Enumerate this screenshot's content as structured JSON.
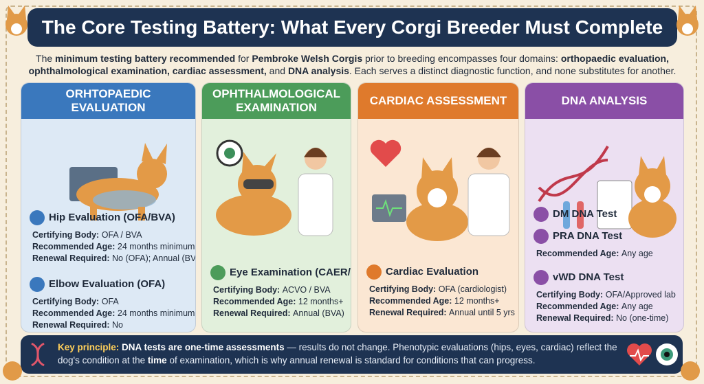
{
  "title": "The Core Testing Battery: What Every Corgi Breeder Must Complete",
  "intro": [
    "The ",
    "minimum testing battery recommended",
    " for ",
    "Pembroke Welsh Corgis",
    " prior to breeding encompasses four domains: ",
    "orthopaedic evaluation, ophthalmological examination, cardiac assessment,",
    " and ",
    "DNA analysis",
    ". Each serves a distinct diagnostic function, and none substitutes for another."
  ],
  "panels": [
    {
      "header": "ORHTOPAEDIC EVALUATION",
      "sections": [
        {
          "title": "Hip Evaluation (OFA/BVA)",
          "fields": [
            {
              "label": "Certifying Body:",
              "value": "OFA / BVA"
            },
            {
              "label": "Recommended Age:",
              "value": "24 months minimum"
            },
            {
              "label": "Renewal Required:",
              "value": "No (OFA); Annual (BVA)"
            }
          ]
        },
        {
          "title": "Elbow Evaluation (OFA)",
          "fields": [
            {
              "label": "Certifying Body:",
              "value": "OFA"
            },
            {
              "label": "Recommended Age:",
              "value": "24 months minimum"
            },
            {
              "label": "Renewal Required:",
              "value": "No"
            }
          ]
        }
      ]
    },
    {
      "header": "OPHTHALMOLOGICAL EXAMINATION",
      "sections": [
        {
          "title": "Eye Examination (CAER/BVA)",
          "fields": [
            {
              "label": "Certifying Body:",
              "value": "ACVO / BVA"
            },
            {
              "label": "Recommended Age:",
              "value": "12 months+"
            },
            {
              "label": "Renewal Required:",
              "value": "Annual (BVA)"
            }
          ]
        }
      ]
    },
    {
      "header": "CARDIAC ASSESSMENT",
      "sections": [
        {
          "title": "Cardiac Evaluation",
          "fields": [
            {
              "label": "Certifying Body:",
              "value": "OFA (cardiologist)"
            },
            {
              "label": "Recommended Age:",
              "value": "12 months+"
            },
            {
              "label": "Renewal Required:",
              "value": "Annual until 5 yrs"
            }
          ]
        }
      ]
    },
    {
      "header": "DNA ANALYSIS",
      "sections": [
        {
          "title": "DM DNA Test",
          "fields": []
        },
        {
          "title": "PRA DNA Test",
          "fields": [
            {
              "label": "Recommended Age:",
              "value": "Any age"
            }
          ]
        },
        {
          "title": "vWD DNA Test",
          "fields": [
            {
              "label": "Certifying Body:",
              "value": "OFA/Approved lab"
            },
            {
              "label": "Recommended Age:",
              "value": "Any age"
            },
            {
              "label": "Renewal Required:",
              "value": "No (one-time)"
            }
          ]
        }
      ]
    }
  ],
  "footer": [
    "Key principle:",
    " DNA tests are one-time assessments",
    " — results do not change. Phenotypic evaluations (hips, eyes, cardiac) reflect the dog's condition at the ",
    "time",
    " of examination, which is why annual renewal is standard for conditions that can progress."
  ]
}
